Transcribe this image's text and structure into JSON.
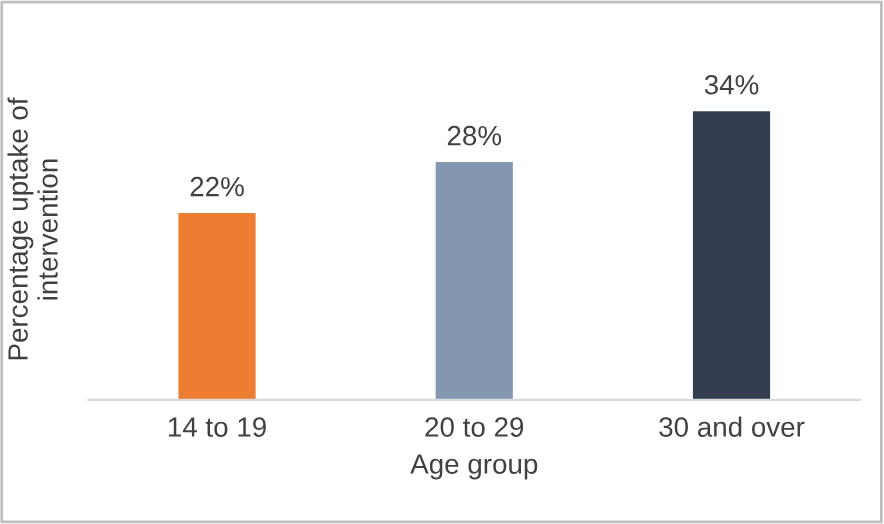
{
  "chart_data": {
    "type": "bar",
    "xlabel": "Age group",
    "ylabel": "Percentage uptake of\nintervention",
    "categories": [
      "14 to 19",
      "20 to 29",
      "30 and over"
    ],
    "values": [
      22,
      28,
      34
    ],
    "colors": [
      "#ed7d31",
      "#8497b0",
      "#333f50"
    ],
    "value_labels": [
      "22%",
      "28%",
      "34%"
    ],
    "tick_labels": "x",
    "grid": false,
    "legend": false
  }
}
